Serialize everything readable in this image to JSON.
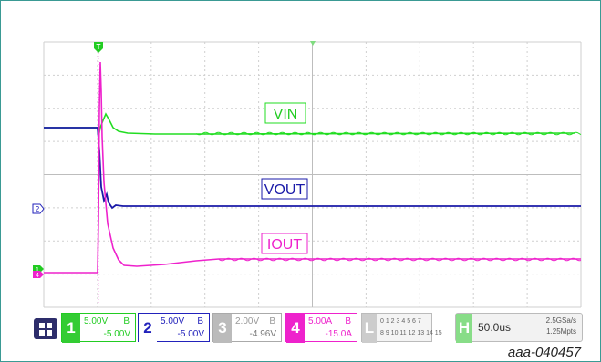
{
  "signals": {
    "vin_label": "VIN",
    "vout_label": "VOUT",
    "iout_label": "IOUT"
  },
  "markers": {
    "trigger_label": "T",
    "ch2_marker": "2",
    "ch1_marker": "1",
    "ch4_marker": "4"
  },
  "channels": [
    {
      "number": "1",
      "scale": "5.00V",
      "coupling": "B",
      "offset": "-5.00V",
      "color": "#22cc22"
    },
    {
      "number": "2",
      "scale": "5.00V",
      "coupling": "B",
      "offset": "-5.00V",
      "color": "#2222bb"
    },
    {
      "number": "3",
      "scale": "2.00V",
      "coupling": "B",
      "offset": "-4.96V",
      "color": "#aaaaaa"
    },
    {
      "number": "4",
      "scale": "5.00A",
      "coupling": "B",
      "offset": "-15.0A",
      "color": "#ee22cc"
    }
  ],
  "logic": {
    "letter": "L",
    "row1": "0 1 2 3  4 5 6 7",
    "row2": "8 9 10 11 12 13 14 15"
  },
  "horizontal": {
    "letter": "H",
    "timebase": "50.0us",
    "sample_rate": "2.5GSa/s",
    "memory": "1.25Mpts"
  },
  "caption": "aaa-040457",
  "colors": {
    "vin": "#22dd22",
    "vout": "#1a1aa8",
    "iout": "#ee22cc",
    "grid": "#c8c8c8"
  }
}
